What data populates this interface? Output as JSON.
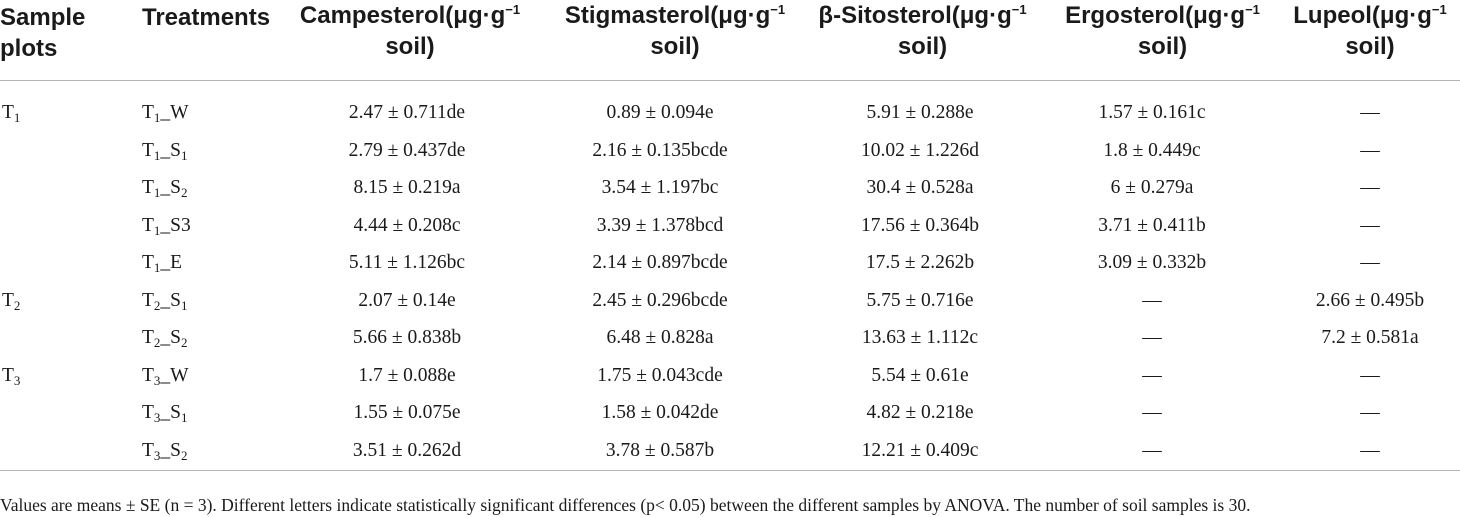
{
  "table": {
    "headers": [
      {
        "line1": "Sample",
        "line2": "plots"
      },
      {
        "line1": "Treatments",
        "line2": ""
      },
      {
        "name": "Campesterol(μg·g",
        "exp": "−1",
        "line2": "soil)"
      },
      {
        "name": "Stigmasterol(μg·g",
        "exp": "−1",
        "line2": "soil)"
      },
      {
        "name": "β-Sitosterol(μg·g",
        "exp": "−1",
        "line2": "soil)"
      },
      {
        "name": "Ergosterol(μg·g",
        "exp": "−1",
        "line2": "soil)"
      },
      {
        "name": "Lupeol(μg·g",
        "exp": "−1",
        "line2": "soil)"
      }
    ],
    "rows": [
      {
        "plot": "T",
        "plot_sub": "1",
        "tr": "T",
        "tr_sub": "1",
        "tr_tail": "_W",
        "tr_tail_sub": "",
        "values": [
          "2.47 ± 0.711de",
          "0.89 ± 0.094e",
          "5.91 ± 0.288e",
          "1.57 ± 0.161c",
          "—"
        ]
      },
      {
        "plot": "",
        "plot_sub": "",
        "tr": "T",
        "tr_sub": "1",
        "tr_tail": "_S",
        "tr_tail_sub": "1",
        "values": [
          "2.79 ± 0.437de",
          "2.16 ± 0.135bcde",
          "10.02 ± 1.226d",
          "1.8 ± 0.449c",
          "—"
        ]
      },
      {
        "plot": "",
        "plot_sub": "",
        "tr": "T",
        "tr_sub": "1",
        "tr_tail": "_S",
        "tr_tail_sub": "2",
        "values": [
          "8.15 ± 0.219a",
          "3.54 ± 1.197bc",
          "30.4 ± 0.528a",
          "6 ± 0.279a",
          "—"
        ]
      },
      {
        "plot": "",
        "plot_sub": "",
        "tr": "T",
        "tr_sub": "1",
        "tr_tail": "_S3",
        "tr_tail_sub": "",
        "values": [
          "4.44 ± 0.208c",
          "3.39 ± 1.378bcd",
          "17.56 ± 0.364b",
          "3.71 ± 0.411b",
          "—"
        ]
      },
      {
        "plot": "",
        "plot_sub": "",
        "tr": "T",
        "tr_sub": "1",
        "tr_tail": "_E",
        "tr_tail_sub": "",
        "values": [
          "5.11 ± 1.126bc",
          "2.14 ± 0.897bcde",
          "17.5 ± 2.262b",
          "3.09 ± 0.332b",
          "—"
        ]
      },
      {
        "plot": "T",
        "plot_sub": "2",
        "tr": "T",
        "tr_sub": "2",
        "tr_tail": "_S",
        "tr_tail_sub": "1",
        "values": [
          "2.07 ± 0.14e",
          "2.45 ± 0.296bcde",
          "5.75 ± 0.716e",
          "—",
          "2.66 ± 0.495b"
        ]
      },
      {
        "plot": "",
        "plot_sub": "",
        "tr": "T",
        "tr_sub": "2",
        "tr_tail": "_S",
        "tr_tail_sub": "2",
        "values": [
          "5.66 ± 0.838b",
          "6.48 ± 0.828a",
          "13.63 ± 1.112c",
          "—",
          "7.2 ± 0.581a"
        ]
      },
      {
        "plot": "T",
        "plot_sub": "3",
        "tr": "T",
        "tr_sub": "3",
        "tr_tail": "_W",
        "tr_tail_sub": "",
        "values": [
          "1.7 ± 0.088e",
          "1.75 ± 0.043cde",
          "5.54 ± 0.61e",
          "—",
          "—"
        ]
      },
      {
        "plot": "",
        "plot_sub": "",
        "tr": "T",
        "tr_sub": "3",
        "tr_tail": "_S",
        "tr_tail_sub": "1",
        "values": [
          "1.55 ± 0.075e",
          "1.58 ± 0.042de",
          "4.82 ± 0.218e",
          "—",
          "—"
        ]
      },
      {
        "plot": "",
        "plot_sub": "",
        "tr": "T",
        "tr_sub": "3",
        "tr_tail": "_S",
        "tr_tail_sub": "2",
        "values": [
          "3.51 ± 0.262d",
          "3.78 ± 0.587b",
          "12.21 ± 0.409c",
          "—",
          "—"
        ]
      }
    ],
    "footnote": "Values are means ± SE (n = 3). Different letters indicate statistically significant differences (p< 0.05) between the different samples by ANOVA. The number of soil samples is 30."
  }
}
